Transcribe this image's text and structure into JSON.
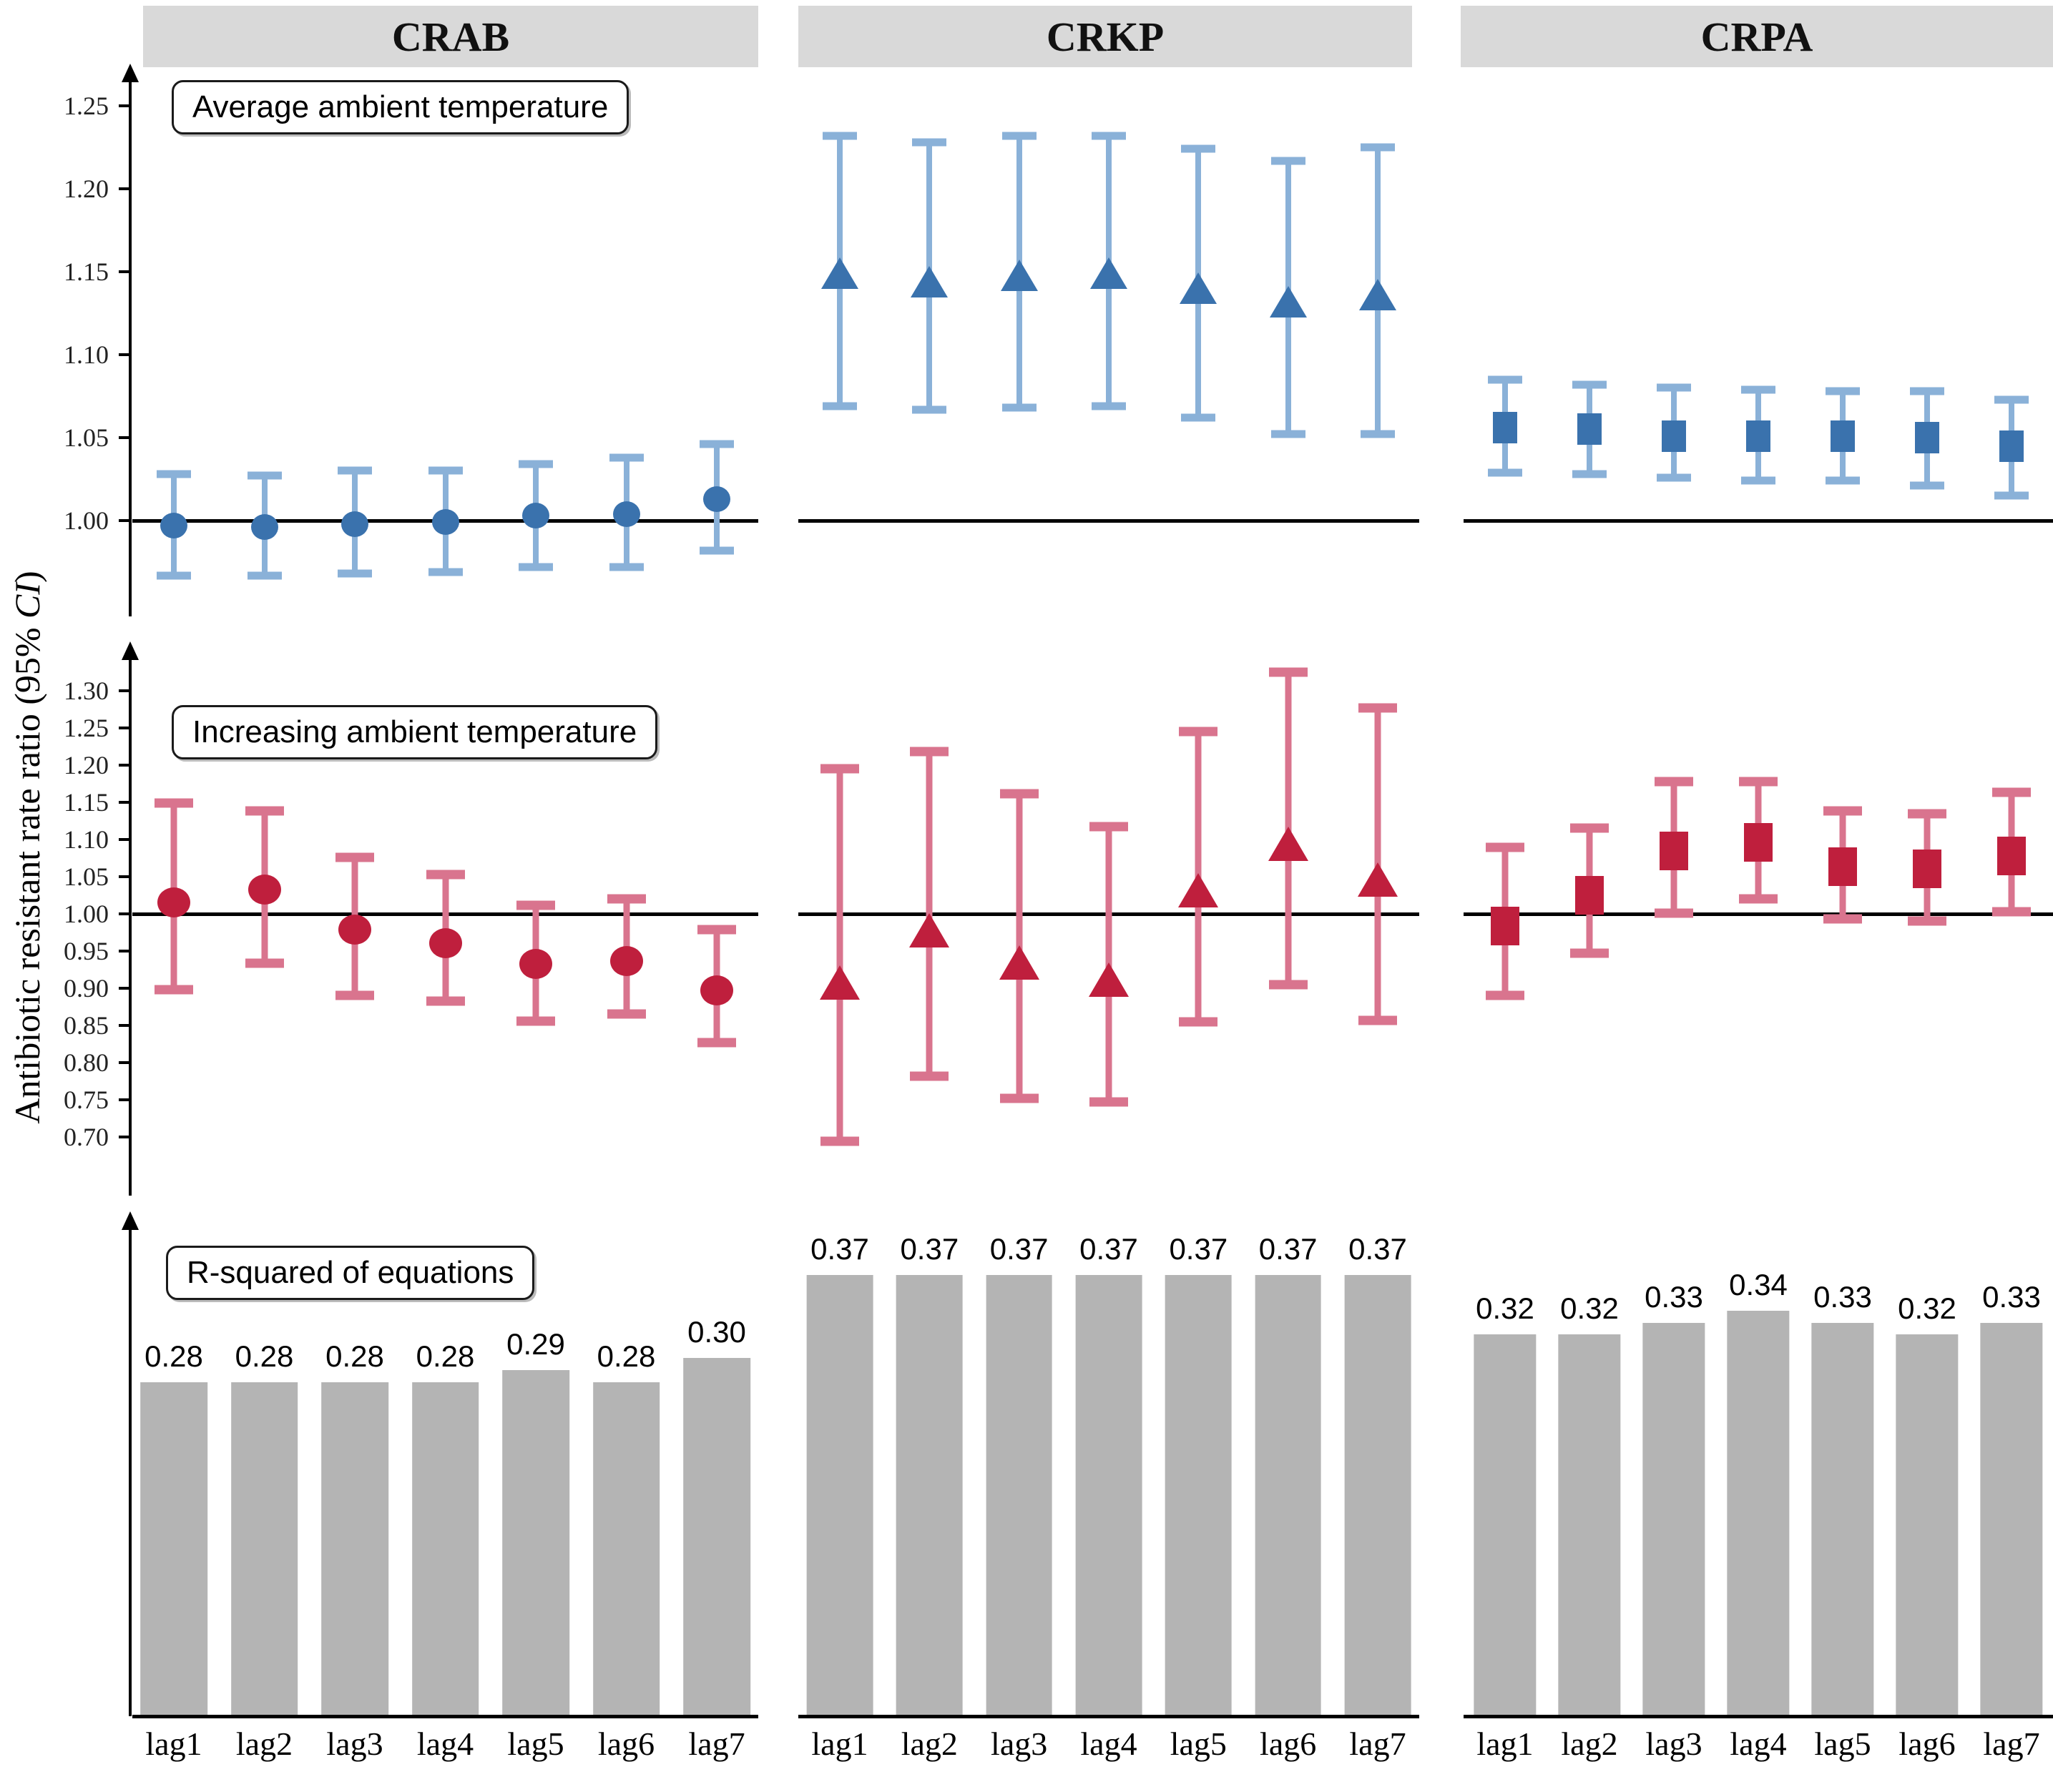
{
  "figure": {
    "ylabel_main": "Antibiotic resistant rate ratio (95% ",
    "ylabel_italic": "CI",
    "ylabel_close": ")"
  },
  "colors": {
    "header_bg": "#d9d9d9",
    "blue_marker": "#3a72ad",
    "blue_bar": "#8ab1d8",
    "red_marker": "#bf1f3d",
    "red_bar": "#d9748e",
    "gray_bar": "#b4b4b4",
    "ref_line": "#000000"
  },
  "chart_data": {
    "type": "errorbar-grid",
    "columns": [
      "CRAB",
      "CRKP",
      "CRPA"
    ],
    "lags": [
      "lag1",
      "lag2",
      "lag3",
      "lag4",
      "lag5",
      "lag6",
      "lag7"
    ],
    "ylabel": "Antibiotic resistant rate ratio (95% CI)",
    "rows": [
      {
        "label": "Average ambient temperature",
        "kind": "point-ci",
        "marker_color": "#3a72ad",
        "bar_color": "#8ab1d8",
        "yticks": [
          1.25,
          1.2,
          1.15,
          1.1,
          1.05,
          1.0
        ],
        "ref": 1.0,
        "panels": [
          {
            "column": "CRAB",
            "marker": "circle",
            "point": [
              0.997,
              0.996,
              0.998,
              0.999,
              1.003,
              1.004,
              1.013
            ],
            "lo": [
              0.967,
              0.967,
              0.968,
              0.969,
              0.972,
              0.972,
              0.982
            ],
            "hi": [
              1.028,
              1.027,
              1.03,
              1.03,
              1.034,
              1.038,
              1.046
            ]
          },
          {
            "column": "CRKP",
            "marker": "triangle",
            "point": [
              1.149,
              1.144,
              1.148,
              1.149,
              1.14,
              1.132,
              1.136
            ],
            "lo": [
              1.069,
              1.067,
              1.068,
              1.069,
              1.062,
              1.052,
              1.052
            ],
            "hi": [
              1.232,
              1.228,
              1.232,
              1.232,
              1.224,
              1.217,
              1.225
            ]
          },
          {
            "column": "CRPA",
            "marker": "square",
            "point": [
              1.056,
              1.055,
              1.051,
              1.051,
              1.051,
              1.05,
              1.045
            ],
            "lo": [
              1.029,
              1.028,
              1.026,
              1.024,
              1.024,
              1.021,
              1.015
            ],
            "hi": [
              1.085,
              1.082,
              1.08,
              1.079,
              1.078,
              1.078,
              1.073
            ]
          }
        ]
      },
      {
        "label": "Increasing ambient temperature",
        "kind": "point-ci",
        "marker_color": "#bf1f3d",
        "bar_color": "#d9748e",
        "yticks": [
          1.3,
          1.25,
          1.2,
          1.15,
          1.1,
          1.05,
          1.0,
          0.95,
          0.9,
          0.85,
          0.8,
          0.75,
          0.7
        ],
        "ref": 1.0,
        "panels": [
          {
            "column": "CRAB",
            "marker": "circle",
            "point": [
              1.015,
              1.033,
              0.979,
              0.961,
              0.933,
              0.937,
              0.897
            ],
            "lo": [
              0.898,
              0.934,
              0.89,
              0.883,
              0.856,
              0.865,
              0.827
            ],
            "hi": [
              1.149,
              1.138,
              1.076,
              1.053,
              1.012,
              1.02,
              0.979
            ]
          },
          {
            "column": "CRKP",
            "marker": "triangle",
            "point": [
              0.908,
              0.978,
              0.935,
              0.912,
              1.032,
              1.094,
              1.046
            ],
            "lo": [
              0.694,
              0.782,
              0.752,
              0.747,
              0.855,
              0.905,
              0.857
            ],
            "hi": [
              1.195,
              1.218,
              1.162,
              1.117,
              1.245,
              1.325,
              1.277
            ]
          },
          {
            "column": "CRPA",
            "marker": "square",
            "point": [
              0.984,
              1.025,
              1.085,
              1.096,
              1.063,
              1.061,
              1.078
            ],
            "lo": [
              0.89,
              0.947,
              1.001,
              1.02,
              0.993,
              0.99,
              1.003
            ],
            "hi": [
              1.089,
              1.115,
              1.178,
              1.178,
              1.138,
              1.135,
              1.163
            ]
          }
        ]
      },
      {
        "label": "R-squared of equations",
        "kind": "bar",
        "bar_color": "#b4b4b4",
        "panels": [
          {
            "column": "CRAB",
            "values": [
              0.28,
              0.28,
              0.28,
              0.28,
              0.29,
              0.28,
              0.3
            ]
          },
          {
            "column": "CRKP",
            "values": [
              0.37,
              0.37,
              0.37,
              0.37,
              0.37,
              0.37,
              0.37
            ]
          },
          {
            "column": "CRPA",
            "values": [
              0.32,
              0.32,
              0.33,
              0.34,
              0.33,
              0.32,
              0.33
            ]
          }
        ]
      }
    ]
  }
}
